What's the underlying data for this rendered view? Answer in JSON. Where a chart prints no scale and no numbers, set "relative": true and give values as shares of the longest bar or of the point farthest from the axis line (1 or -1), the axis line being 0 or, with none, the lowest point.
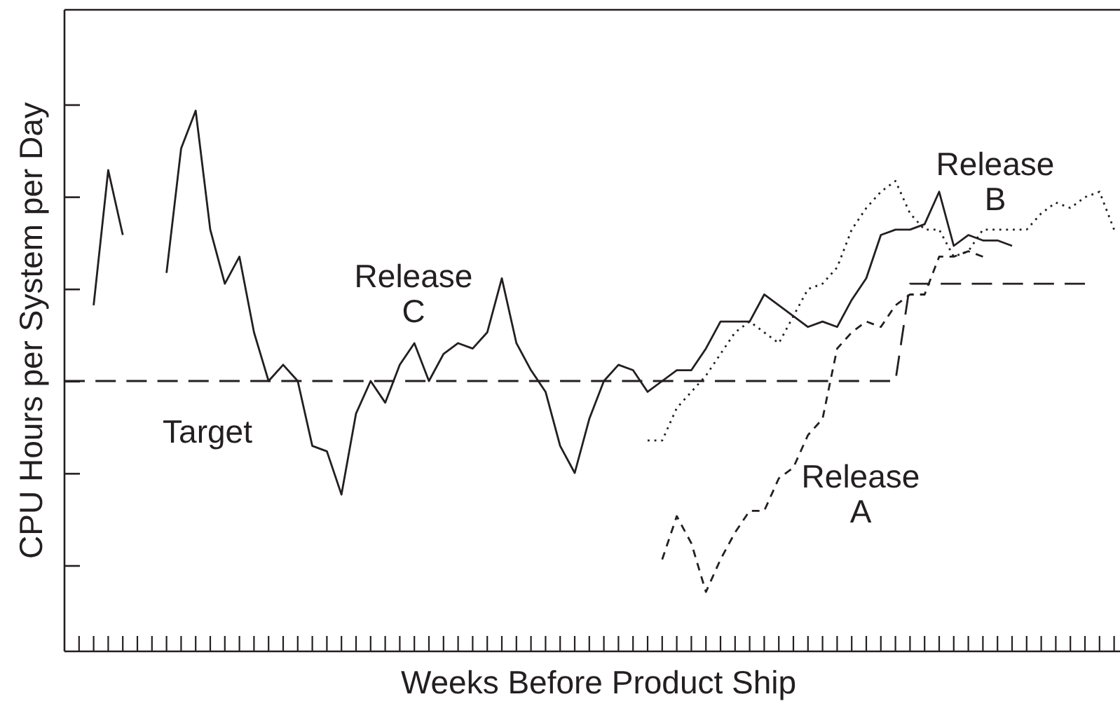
{
  "chart_data": {
    "type": "line",
    "relative": true,
    "xlabel": "Weeks Before Product Ship",
    "ylabel": "CPU Hours per System per Day",
    "categories": [
      null,
      null,
      null,
      null,
      null,
      null,
      null,
      null,
      null,
      null,
      null,
      null,
      null,
      null,
      null,
      null,
      null,
      null,
      null,
      null,
      null,
      null,
      null,
      null,
      null,
      null,
      null,
      null,
      null,
      null,
      null,
      null,
      null,
      null,
      null,
      null,
      null,
      null,
      null,
      null,
      null,
      null,
      null,
      null,
      null,
      null,
      null,
      null,
      null,
      null,
      null,
      null,
      null,
      null,
      null,
      null,
      null,
      null,
      null,
      null,
      null,
      null,
      null,
      null,
      null,
      null,
      null,
      null,
      null,
      null,
      null,
      null,
      null
    ],
    "series": [
      {
        "name": "Release A",
        "color": "#231f20",
        "line_style": "dashed",
        "values": [
          null,
          null,
          null,
          null,
          null,
          null,
          null,
          null,
          null,
          null,
          null,
          null,
          null,
          null,
          null,
          null,
          null,
          null,
          null,
          null,
          null,
          null,
          null,
          null,
          null,
          null,
          null,
          null,
          null,
          null,
          null,
          null,
          null,
          null,
          null,
          null,
          null,
          null,
          null,
          null,
          null,
          0.17,
          0.25,
          0.2,
          0.11,
          0.17,
          0.22,
          0.26,
          0.26,
          0.32,
          0.34,
          0.4,
          0.43,
          0.56,
          0.59,
          0.61,
          0.6,
          0.64,
          0.66,
          0.66,
          0.73,
          0.73,
          0.74,
          0.73,
          null,
          null,
          null,
          null,
          null,
          null,
          null,
          null,
          null
        ]
      },
      {
        "name": "Release B",
        "color": "#231f20",
        "line_style": "dotted",
        "values": [
          null,
          null,
          null,
          null,
          null,
          null,
          null,
          null,
          null,
          null,
          null,
          null,
          null,
          null,
          null,
          null,
          null,
          null,
          null,
          null,
          null,
          null,
          null,
          null,
          null,
          null,
          null,
          null,
          null,
          null,
          null,
          null,
          null,
          null,
          null,
          null,
          null,
          null,
          null,
          null,
          0.39,
          0.39,
          0.45,
          0.48,
          0.51,
          0.55,
          0.59,
          0.61,
          0.59,
          0.57,
          0.62,
          0.67,
          0.68,
          0.71,
          0.78,
          0.82,
          0.85,
          0.87,
          0.81,
          0.78,
          0.78,
          0.73,
          0.74,
          0.78,
          0.78,
          0.78,
          0.78,
          0.81,
          0.83,
          0.82,
          0.84,
          0.85,
          0.78
        ]
      },
      {
        "name": "Release C",
        "color": "#231f20",
        "line_style": "solid",
        "values": [
          null,
          null,
          0.64,
          0.89,
          0.77,
          null,
          null,
          0.7,
          0.93,
          1.0,
          0.78,
          0.68,
          0.73,
          0.59,
          0.5,
          0.53,
          0.5,
          0.38,
          0.37,
          0.29,
          0.44,
          0.5,
          0.46,
          0.53,
          0.57,
          0.5,
          0.55,
          0.57,
          0.56,
          0.59,
          0.69,
          0.57,
          0.52,
          0.48,
          0.38,
          0.33,
          0.43,
          0.5,
          0.53,
          0.52,
          0.48,
          0.5,
          0.52,
          0.52,
          0.56,
          0.61,
          0.61,
          0.61,
          0.66,
          0.64,
          0.62,
          0.6,
          0.61,
          0.6,
          0.65,
          0.69,
          0.77,
          0.78,
          0.78,
          0.79,
          0.85,
          0.75,
          0.77,
          0.76,
          0.76,
          0.75,
          null,
          null,
          null,
          null,
          null,
          null,
          null
        ]
      },
      {
        "name": "Target",
        "color": "#231f20",
        "line_style": "dashed",
        "values": [
          0.5,
          0.5,
          0.5,
          0.5,
          0.5,
          0.5,
          0.5,
          0.5,
          0.5,
          0.5,
          0.5,
          0.5,
          0.5,
          0.5,
          0.5,
          0.5,
          0.5,
          0.5,
          0.5,
          0.5,
          0.5,
          0.5,
          0.5,
          0.5,
          0.5,
          0.5,
          0.5,
          0.5,
          0.5,
          0.5,
          0.5,
          0.5,
          0.5,
          0.5,
          0.5,
          0.5,
          0.5,
          0.5,
          0.5,
          0.5,
          0.5,
          0.5,
          0.5,
          0.5,
          0.5,
          0.5,
          0.5,
          0.5,
          0.5,
          0.5,
          0.5,
          0.5,
          0.5,
          0.5,
          0.5,
          0.5,
          0.5,
          0.5,
          0.68,
          0.68,
          0.68,
          0.68,
          0.68,
          0.68,
          0.68,
          0.68,
          0.68,
          0.68,
          0.68,
          0.68,
          0.68,
          null,
          null
        ]
      }
    ]
  }
}
